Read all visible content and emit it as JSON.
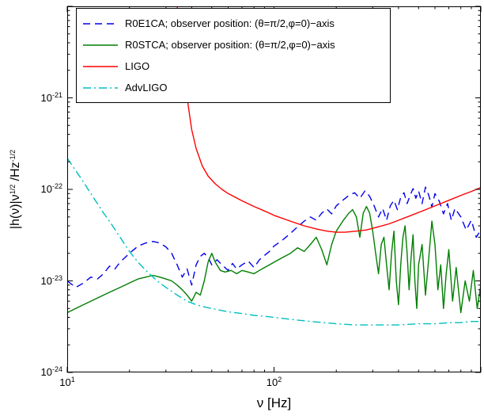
{
  "figure_title": "",
  "axes": {
    "xlabel_text": "ν [Hz]",
    "ylabel_parts": {
      "p1": "|h(ν)|ν",
      "s1": "1/2",
      "p2": " /Hz",
      "s2": "-1/2"
    }
  },
  "colors": {
    "blue": "#0000ee",
    "green": "#007f00",
    "red": "#ff0000",
    "cyan": "#00bfbf",
    "axis": "#000000",
    "background": "#ffffff"
  },
  "chart_data": {
    "type": "line",
    "title": "",
    "xlabel": "ν [Hz]",
    "ylabel": "|h(ν)|ν^{1/2} /Hz^{-1/2}",
    "xscale": "log",
    "yscale": "log",
    "xlim": [
      10,
      1000
    ],
    "ylim": [
      1e-24,
      1e-20
    ],
    "grid": false,
    "legend_position": "top-left",
    "xticks": [
      {
        "v": 10,
        "base": "10",
        "exp": "1"
      },
      {
        "v": 100,
        "base": "10",
        "exp": "2"
      }
    ],
    "yticks": [
      {
        "v": 1e-21,
        "base": "10",
        "exp": "-21"
      },
      {
        "v": 1e-22,
        "base": "10",
        "exp": "-22"
      },
      {
        "v": 1e-23,
        "base": "10",
        "exp": "-23"
      },
      {
        "v": 1e-24,
        "base": "10",
        "exp": "-24"
      }
    ],
    "series": [
      {
        "id": "r0e1ca",
        "name": "R0E1CA; observer position: (θ=π/2,φ=0)−axis",
        "color": "#0000ee",
        "style": "dashed",
        "points": [
          [
            10,
            1e-23
          ],
          [
            11,
            8.5e-24
          ],
          [
            12,
            9.5e-24
          ],
          [
            13,
            1.1e-23
          ],
          [
            14,
            1.05e-23
          ],
          [
            15,
            1.2e-23
          ],
          [
            16,
            1.45e-23
          ],
          [
            17,
            1.35e-23
          ],
          [
            18,
            1.6e-23
          ],
          [
            20,
            2e-23
          ],
          [
            22,
            2.4e-23
          ],
          [
            24,
            2.6e-23
          ],
          [
            26,
            2.7e-23
          ],
          [
            28,
            2.6e-23
          ],
          [
            30,
            2.35e-23
          ],
          [
            32,
            2e-23
          ],
          [
            34,
            1.5e-23
          ],
          [
            36,
            1.1e-23
          ],
          [
            38,
            1.35e-23
          ],
          [
            40,
            9e-24
          ],
          [
            42,
            1.5e-23
          ],
          [
            44,
            1.85e-23
          ],
          [
            46,
            2e-23
          ],
          [
            48,
            1.8e-23
          ],
          [
            50,
            1.5e-23
          ],
          [
            53,
            1.7e-23
          ],
          [
            56,
            1.5e-23
          ],
          [
            60,
            1.3e-23
          ],
          [
            63,
            1.55e-23
          ],
          [
            66,
            1.35e-23
          ],
          [
            70,
            1.5e-23
          ],
          [
            75,
            1.65e-23
          ],
          [
            80,
            1.4e-23
          ],
          [
            85,
            1.7e-23
          ],
          [
            90,
            1.9e-23
          ],
          [
            95,
            2.1e-23
          ],
          [
            100,
            2.4e-23
          ],
          [
            110,
            2.8e-23
          ],
          [
            120,
            3.3e-23
          ],
          [
            130,
            3.9e-23
          ],
          [
            140,
            4.5e-23
          ],
          [
            150,
            5e-23
          ],
          [
            160,
            4.6e-23
          ],
          [
            170,
            5.5e-23
          ],
          [
            180,
            6.1e-23
          ],
          [
            190,
            5.4e-23
          ],
          [
            200,
            6.6e-23
          ],
          [
            215,
            7.6e-23
          ],
          [
            230,
            8.6e-23
          ],
          [
            245,
            9.2e-23
          ],
          [
            260,
            8e-23
          ],
          [
            275,
            9.6e-23
          ],
          [
            290,
            8.4e-23
          ],
          [
            305,
            6.6e-23
          ],
          [
            320,
            5e-23
          ],
          [
            335,
            6.2e-23
          ],
          [
            350,
            4.6e-23
          ],
          [
            365,
            6.6e-23
          ],
          [
            380,
            7.6e-23
          ],
          [
            395,
            6e-23
          ],
          [
            410,
            8.2e-23
          ],
          [
            425,
            9.2e-23
          ],
          [
            440,
            7e-23
          ],
          [
            455,
            8.6e-23
          ],
          [
            470,
            1.02e-22
          ],
          [
            485,
            8e-23
          ],
          [
            500,
            9.6e-23
          ],
          [
            520,
            7e-23
          ],
          [
            540,
            1.06e-22
          ],
          [
            560,
            8.6e-23
          ],
          [
            580,
            6.4e-23
          ],
          [
            600,
            9e-23
          ],
          [
            630,
            7.4e-23
          ],
          [
            660,
            5.4e-23
          ],
          [
            690,
            7e-23
          ],
          [
            720,
            4.6e-23
          ],
          [
            750,
            6.2e-23
          ],
          [
            800,
            5e-23
          ],
          [
            850,
            3.6e-23
          ],
          [
            900,
            4.6e-23
          ],
          [
            950,
            3e-23
          ],
          [
            1000,
            3.6e-23
          ]
        ]
      },
      {
        "id": "r0stca",
        "name": "R0STCA; observer position: (θ=π/2,φ=0)−axis",
        "color": "#007f00",
        "style": "solid",
        "points": [
          [
            10,
            4.5e-24
          ],
          [
            11,
            5e-24
          ],
          [
            12,
            5.5e-24
          ],
          [
            13,
            6e-24
          ],
          [
            14,
            6.5e-24
          ],
          [
            15,
            7e-24
          ],
          [
            16,
            7.5e-24
          ],
          [
            18,
            8.5e-24
          ],
          [
            20,
            9.5e-24
          ],
          [
            22,
            1.05e-23
          ],
          [
            24,
            1.1e-23
          ],
          [
            26,
            1.15e-23
          ],
          [
            28,
            1.1e-23
          ],
          [
            30,
            1.05e-23
          ],
          [
            32,
            1e-23
          ],
          [
            34,
            9e-24
          ],
          [
            36,
            8e-24
          ],
          [
            38,
            7e-24
          ],
          [
            40,
            6e-24
          ],
          [
            42,
            7.5e-24
          ],
          [
            44,
            7e-24
          ],
          [
            46,
            1e-23
          ],
          [
            48,
            1.6e-23
          ],
          [
            50,
            2e-23
          ],
          [
            52,
            1.6e-23
          ],
          [
            55,
            1.3e-23
          ],
          [
            58,
            1.25e-23
          ],
          [
            62,
            1.3e-23
          ],
          [
            66,
            1.2e-23
          ],
          [
            70,
            1.3e-23
          ],
          [
            75,
            1.25e-23
          ],
          [
            80,
            1.2e-23
          ],
          [
            85,
            1.3e-23
          ],
          [
            90,
            1.4e-23
          ],
          [
            95,
            1.5e-23
          ],
          [
            100,
            1.6e-23
          ],
          [
            110,
            1.8e-23
          ],
          [
            120,
            2e-23
          ],
          [
            130,
            2.3e-23
          ],
          [
            140,
            2.1e-23
          ],
          [
            150,
            2.5e-23
          ],
          [
            160,
            3e-23
          ],
          [
            170,
            2.2e-23
          ],
          [
            180,
            1.5e-23
          ],
          [
            190,
            2.5e-23
          ],
          [
            200,
            3.5e-23
          ],
          [
            215,
            4.5e-23
          ],
          [
            230,
            5.5e-23
          ],
          [
            240,
            6e-23
          ],
          [
            250,
            5e-23
          ],
          [
            260,
            3e-23
          ],
          [
            270,
            5.5e-23
          ],
          [
            280,
            6.5e-23
          ],
          [
            290,
            5.5e-23
          ],
          [
            300,
            3.5e-23
          ],
          [
            310,
            2e-23
          ],
          [
            320,
            1.2e-23
          ],
          [
            330,
            2.5e-23
          ],
          [
            340,
            3e-23
          ],
          [
            350,
            1.5e-23
          ],
          [
            360,
            8e-24
          ],
          [
            370,
            2e-23
          ],
          [
            380,
            3.5e-23
          ],
          [
            390,
            1e-23
          ],
          [
            400,
            5.5e-24
          ],
          [
            410,
            1.5e-23
          ],
          [
            420,
            3e-23
          ],
          [
            430,
            4e-23
          ],
          [
            440,
            2e-23
          ],
          [
            450,
            8e-24
          ],
          [
            460,
            1.8e-23
          ],
          [
            470,
            3.2e-23
          ],
          [
            480,
            1e-23
          ],
          [
            490,
            5e-24
          ],
          [
            500,
            1.5e-23
          ],
          [
            520,
            2.5e-23
          ],
          [
            540,
            7e-24
          ],
          [
            560,
            1.8e-23
          ],
          [
            580,
            4.5e-23
          ],
          [
            600,
            2.5e-23
          ],
          [
            620,
            8e-24
          ],
          [
            640,
            1.5e-23
          ],
          [
            660,
            5e-24
          ],
          [
            680,
            1.2e-23
          ],
          [
            700,
            2.2e-23
          ],
          [
            730,
            6e-24
          ],
          [
            760,
            1.4e-23
          ],
          [
            800,
            4.5e-24
          ],
          [
            840,
            1e-23
          ],
          [
            880,
            6e-24
          ],
          [
            920,
            1.3e-23
          ],
          [
            960,
            5e-24
          ],
          [
            1000,
            9e-24
          ]
        ]
      },
      {
        "id": "ligo",
        "name": "LIGO",
        "color": "#ff0000",
        "style": "solid",
        "points": [
          [
            34,
            1e-20
          ],
          [
            36,
            3e-21
          ],
          [
            38,
            1e-21
          ],
          [
            40,
            4.5e-22
          ],
          [
            42,
            2.8e-22
          ],
          [
            45,
            1.8e-22
          ],
          [
            48,
            1.4e-22
          ],
          [
            52,
            1.15e-22
          ],
          [
            56,
            1e-22
          ],
          [
            60,
            9e-23
          ],
          [
            70,
            7.5e-23
          ],
          [
            80,
            6.5e-23
          ],
          [
            90,
            5.8e-23
          ],
          [
            100,
            5.2e-23
          ],
          [
            120,
            4.5e-23
          ],
          [
            140,
            4e-23
          ],
          [
            160,
            3.7e-23
          ],
          [
            180,
            3.5e-23
          ],
          [
            200,
            3.4e-23
          ],
          [
            220,
            3.4e-23
          ],
          [
            250,
            3.5e-23
          ],
          [
            280,
            3.6e-23
          ],
          [
            320,
            3.9e-23
          ],
          [
            360,
            4.2e-23
          ],
          [
            400,
            4.6e-23
          ],
          [
            450,
            5.1e-23
          ],
          [
            500,
            5.6e-23
          ],
          [
            560,
            6.2e-23
          ],
          [
            630,
            6.9e-23
          ],
          [
            700,
            7.6e-23
          ],
          [
            800,
            8.6e-23
          ],
          [
            900,
            9.5e-23
          ],
          [
            1000,
            1.05e-22
          ]
        ]
      },
      {
        "id": "advligo",
        "name": "AdvLIGO",
        "color": "#00bfbf",
        "style": "dashdot",
        "points": [
          [
            10,
            2.2e-22
          ],
          [
            11,
            1.6e-22
          ],
          [
            12,
            1.2e-22
          ],
          [
            13,
            9e-23
          ],
          [
            14,
            7e-23
          ],
          [
            15,
            5.5e-23
          ],
          [
            16,
            4.5e-23
          ],
          [
            18,
            3e-23
          ],
          [
            20,
            2.1e-23
          ],
          [
            22,
            1.6e-23
          ],
          [
            24,
            1.3e-23
          ],
          [
            26,
            1.1e-23
          ],
          [
            28,
            9.5e-24
          ],
          [
            30,
            8.5e-24
          ],
          [
            34,
            7e-24
          ],
          [
            38,
            6e-24
          ],
          [
            42,
            5.5e-24
          ],
          [
            46,
            5.2e-24
          ],
          [
            50,
            5e-24
          ],
          [
            60,
            4.6e-24
          ],
          [
            70,
            4.4e-24
          ],
          [
            80,
            4.2e-24
          ],
          [
            90,
            4.1e-24
          ],
          [
            100,
            4e-24
          ],
          [
            120,
            3.8e-24
          ],
          [
            150,
            3.6e-24
          ],
          [
            200,
            3.4e-24
          ],
          [
            250,
            3.3e-24
          ],
          [
            300,
            3.3e-24
          ],
          [
            400,
            3.3e-24
          ],
          [
            500,
            3.4e-24
          ],
          [
            600,
            3.4e-24
          ],
          [
            700,
            3.5e-24
          ],
          [
            800,
            3.5e-24
          ],
          [
            900,
            3.6e-24
          ],
          [
            1000,
            3.6e-24
          ]
        ]
      }
    ]
  }
}
